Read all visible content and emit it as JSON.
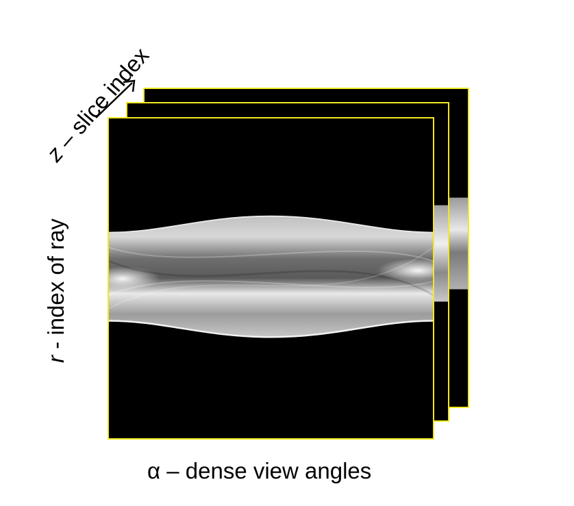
{
  "labels": {
    "x_symbol": "α",
    "x_text": " – dense view angles",
    "y_symbol": "r",
    "y_text": " - index of ray",
    "z_symbol": "z",
    "z_text": " – slice index"
  },
  "colors": {
    "frame_border": "#f2ea1c",
    "frame_background": "#000000",
    "sinogram_light": "#e6e6e6",
    "sinogram_dark": "#5a5a5a"
  },
  "icons": {
    "z_direction": "arrow-up-right-icon"
  }
}
